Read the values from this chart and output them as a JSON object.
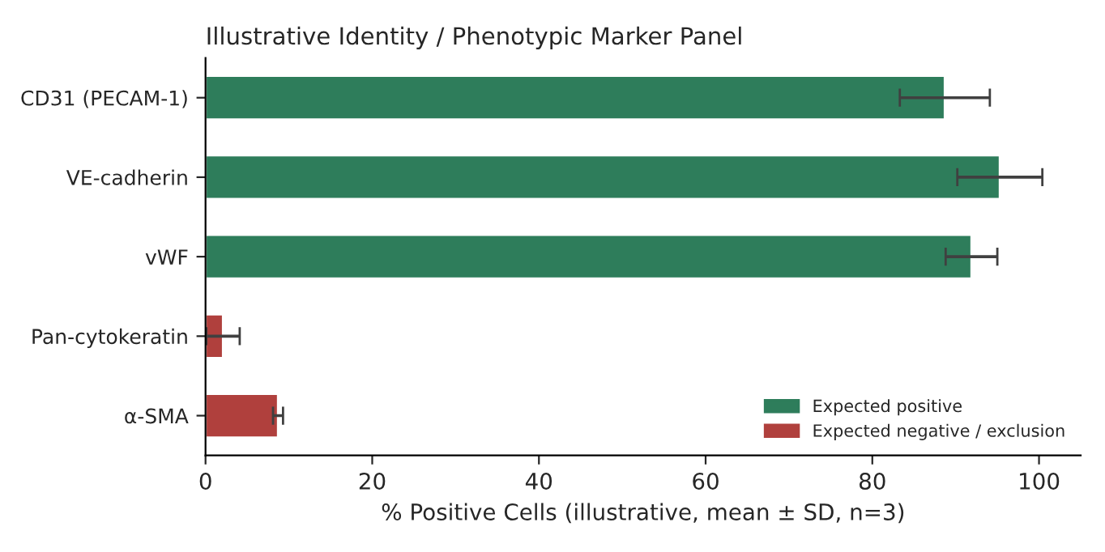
{
  "chart_data": {
    "type": "bar",
    "orientation": "horizontal",
    "title": "Illustrative Identity / Phenotypic Marker Panel",
    "xlabel": "% Positive Cells (illustrative, mean ± SD, n=3)",
    "categories": [
      "CD31 (PECAM-1)",
      "VE-cadherin",
      "vWF",
      "Pan-cytokeratin",
      "α-SMA"
    ],
    "series": [
      {
        "name": "Expected positive",
        "color": "#2e7d5b",
        "values": [
          88.7,
          95.3,
          91.9,
          null,
          null
        ],
        "errors": [
          5.4,
          5.1,
          3.1,
          null,
          null
        ]
      },
      {
        "name": "Expected negative / exclusion",
        "color": "#b0403d",
        "values": [
          null,
          null,
          null,
          2.1,
          8.7
        ],
        "errors": [
          null,
          null,
          null,
          2.0,
          0.6
        ]
      }
    ],
    "xlim": [
      0,
      105
    ],
    "xticks": [
      0,
      20,
      40,
      60,
      80,
      100
    ],
    "grid": false,
    "legend": "lower right"
  }
}
